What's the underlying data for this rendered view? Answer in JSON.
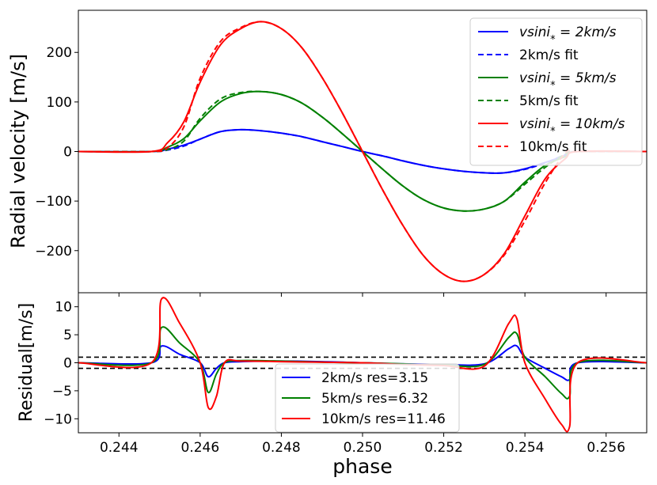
{
  "chart_data": [
    {
      "type": "line",
      "ylabel": "Radial velocity [m/s]",
      "xlim": [
        0.243,
        0.257
      ],
      "ylim": [
        -285,
        285
      ],
      "yticks": [
        -200,
        -100,
        0,
        100,
        200
      ],
      "ytick_labels": [
        "−200",
        "−100",
        "0",
        "100",
        "200"
      ],
      "legend_placement": "upper right",
      "series": [
        {
          "name": "vsini* = 2km/s",
          "legend_main": "vsin",
          "legend_sub": "*",
          "legend_rest": " = 2km/s",
          "color": "#0000ff",
          "style": "solid",
          "x": [
            0.243,
            0.2448,
            0.2452,
            0.2456,
            0.246,
            0.2465,
            0.247,
            0.2475,
            0.248,
            0.2485,
            0.249,
            0.2495,
            0.25,
            0.2505,
            0.251,
            0.2515,
            0.252,
            0.2525,
            0.253,
            0.2535,
            0.254,
            0.2545,
            0.255,
            0.2553,
            0.257
          ],
          "y": [
            0,
            0,
            5,
            13,
            25,
            40,
            44,
            42,
            37,
            30,
            20,
            10,
            0,
            -9,
            -19,
            -28,
            -35,
            -40,
            -43,
            -43,
            -35,
            -22,
            -8,
            0,
            0
          ]
        },
        {
          "name": "2km/s fit",
          "color": "#0000ff",
          "style": "dashed",
          "x": [
            0.243,
            0.2448,
            0.2452,
            0.2456,
            0.246,
            0.2465,
            0.247,
            0.2475,
            0.248,
            0.2485,
            0.249,
            0.2495,
            0.25,
            0.2505,
            0.251,
            0.2515,
            0.252,
            0.2525,
            0.253,
            0.2535,
            0.254,
            0.2545,
            0.255,
            0.2553,
            0.257
          ],
          "y": [
            0,
            0,
            3,
            11,
            25,
            40,
            44,
            42,
            37,
            30,
            20,
            10,
            0,
            -9,
            -19,
            -28,
            -35,
            -40,
            -43,
            -43,
            -36,
            -23,
            -6,
            0,
            0
          ]
        },
        {
          "name": "vsini* = 5km/s",
          "legend_main": "vsin",
          "legend_sub": "*",
          "legend_rest": " = 5km/s",
          "color": "#008000",
          "style": "solid",
          "x": [
            0.243,
            0.2448,
            0.2452,
            0.2456,
            0.246,
            0.2465,
            0.247,
            0.2475,
            0.248,
            0.2485,
            0.249,
            0.2495,
            0.25,
            0.2505,
            0.251,
            0.2515,
            0.252,
            0.2525,
            0.253,
            0.2535,
            0.254,
            0.2545,
            0.255,
            0.2553,
            0.257
          ],
          "y": [
            0,
            0,
            9,
            26,
            62,
            100,
            117,
            121,
            115,
            98,
            70,
            36,
            0,
            -36,
            -70,
            -97,
            -114,
            -120,
            -116,
            -100,
            -62,
            -28,
            -10,
            0,
            0
          ]
        },
        {
          "name": "5km/s fit",
          "color": "#008000",
          "style": "dashed",
          "x": [
            0.243,
            0.2448,
            0.2452,
            0.2456,
            0.246,
            0.2465,
            0.247,
            0.2475,
            0.248,
            0.2485,
            0.249,
            0.2495,
            0.25,
            0.2505,
            0.251,
            0.2515,
            0.252,
            0.2525,
            0.253,
            0.2535,
            0.254,
            0.2545,
            0.255,
            0.2553,
            0.257
          ],
          "y": [
            0,
            0,
            4,
            21,
            67,
            106,
            119,
            121,
            115,
            98,
            70,
            36,
            0,
            -36,
            -70,
            -97,
            -114,
            -120,
            -116,
            -100,
            -66,
            -32,
            -5,
            0,
            0
          ]
        },
        {
          "name": "vsini* = 10km/s",
          "legend_main": "vsin",
          "legend_sub": "*",
          "legend_rest": " = 10km/s",
          "color": "#ff0000",
          "style": "solid",
          "x": [
            0.243,
            0.2448,
            0.2452,
            0.2456,
            0.246,
            0.2465,
            0.247,
            0.2475,
            0.248,
            0.2485,
            0.249,
            0.2495,
            0.25,
            0.2505,
            0.251,
            0.2515,
            0.252,
            0.2525,
            0.253,
            0.2535,
            0.254,
            0.2545,
            0.255,
            0.2553,
            0.257
          ],
          "y": [
            0,
            0,
            18,
            60,
            140,
            215,
            248,
            262,
            248,
            210,
            150,
            78,
            0,
            -78,
            -150,
            -210,
            -248,
            -262,
            -248,
            -205,
            -130,
            -55,
            -14,
            0,
            0
          ]
        },
        {
          "name": "10km/s fit",
          "color": "#ff0000",
          "style": "dashed",
          "x": [
            0.243,
            0.2448,
            0.2452,
            0.2456,
            0.246,
            0.2465,
            0.247,
            0.2475,
            0.248,
            0.2485,
            0.249,
            0.2495,
            0.25,
            0.2505,
            0.251,
            0.2515,
            0.252,
            0.2525,
            0.253,
            0.2535,
            0.254,
            0.2545,
            0.255,
            0.2553,
            0.257
          ],
          "y": [
            0,
            0,
            8,
            50,
            148,
            222,
            250,
            262,
            248,
            210,
            150,
            78,
            0,
            -78,
            -150,
            -210,
            -248,
            -262,
            -248,
            -208,
            -140,
            -63,
            -3,
            0,
            0
          ]
        }
      ]
    },
    {
      "type": "line",
      "xlabel": "phase",
      "ylabel": "Residual[m/s]",
      "xlim": [
        0.243,
        0.257
      ],
      "ylim": [
        -12.5,
        12.5
      ],
      "xticks": [
        0.244,
        0.246,
        0.248,
        0.25,
        0.252,
        0.254,
        0.256
      ],
      "xtick_labels": [
        "0.244",
        "0.246",
        "0.248",
        "0.250",
        "0.252",
        "0.254",
        "0.256"
      ],
      "yticks": [
        -10,
        -5,
        0,
        5,
        10
      ],
      "ytick_labels": [
        "−10",
        "−5",
        "0",
        "5",
        "10"
      ],
      "hlines": [
        1,
        -1
      ],
      "legend_placement": "lower center",
      "series": [
        {
          "name": "2km/s res=3.15",
          "color": "#0000ff",
          "x": [
            0.243,
            0.2448,
            0.24505,
            0.2455,
            0.246,
            0.2462,
            0.2464,
            0.2466,
            0.247,
            0.248,
            0.249,
            0.25,
            0.251,
            0.252,
            0.253,
            0.2536,
            0.2538,
            0.254,
            0.2545,
            0.2549,
            0.2551,
            0.2553,
            0.257
          ],
          "y": [
            0,
            0,
            3,
            1.5,
            0,
            -2.5,
            -1,
            0,
            0.2,
            0.3,
            0.2,
            0,
            -0.2,
            -0.3,
            -0.2,
            2.5,
            3,
            1,
            -1,
            -2.5,
            -3,
            0,
            0
          ]
        },
        {
          "name": "5km/s res=6.32",
          "color": "#008000",
          "x": [
            0.243,
            0.2448,
            0.24505,
            0.2455,
            0.246,
            0.2462,
            0.2464,
            0.2466,
            0.247,
            0.248,
            0.249,
            0.25,
            0.251,
            0.252,
            0.253,
            0.2536,
            0.2538,
            0.254,
            0.2545,
            0.2549,
            0.2551,
            0.2553,
            0.257
          ],
          "y": [
            0,
            0,
            6.3,
            3.5,
            0,
            -5.3,
            -2,
            0,
            0.4,
            0.3,
            0.1,
            0,
            -0.2,
            -0.4,
            -0.3,
            4.5,
            5.2,
            1,
            -2.5,
            -5.5,
            -6,
            0,
            0
          ]
        },
        {
          "name": "10km/s res=11.46",
          "color": "#ff0000",
          "x": [
            0.243,
            0.2448,
            0.24505,
            0.2455,
            0.246,
            0.2462,
            0.2464,
            0.2466,
            0.247,
            0.248,
            0.249,
            0.25,
            0.251,
            0.252,
            0.253,
            0.2536,
            0.2538,
            0.254,
            0.2545,
            0.2549,
            0.2551,
            0.2553,
            0.257
          ],
          "y": [
            0,
            0,
            11.4,
            7,
            0,
            -8,
            -6,
            0,
            0.3,
            0.2,
            0.1,
            0,
            -0.3,
            -0.5,
            -0.6,
            7,
            7.9,
            0,
            -6.5,
            -11,
            -11.4,
            0,
            0
          ]
        }
      ]
    }
  ]
}
